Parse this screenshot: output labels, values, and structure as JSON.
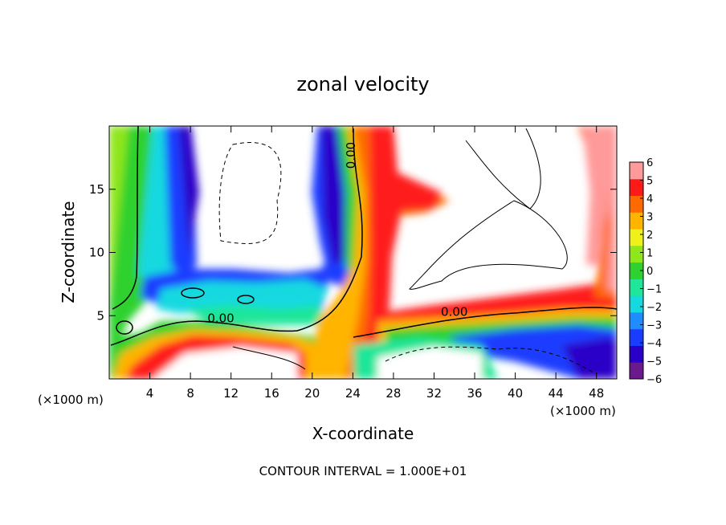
{
  "chart_data": {
    "type": "heatmap",
    "title": "zonal velocity",
    "xlabel": "X-coordinate",
    "ylabel": "Z-coordinate",
    "x_unit": "(×1000 m)",
    "y_unit": "(×1000 m)",
    "footer": "CONTOUR INTERVAL = 1.000E+01",
    "xlim": [
      0,
      50
    ],
    "ylim": [
      0,
      20
    ],
    "x_ticks": [
      4,
      8,
      12,
      16,
      20,
      24,
      28,
      32,
      36,
      40,
      44,
      48
    ],
    "y_ticks": [
      5,
      10,
      15
    ],
    "colorbar": {
      "range": [
        -6,
        6
      ],
      "ticks": [
        6,
        5,
        4,
        3,
        2,
        1,
        0,
        -1,
        -2,
        -3,
        -4,
        -5,
        -6
      ],
      "colors": [
        "#6b1a8e",
        "#2a00c8",
        "#1a3cff",
        "#1f8cff",
        "#16d9e0",
        "#1fe69a",
        "#2ed12e",
        "#8fe61a",
        "#f0f01a",
        "#ffb400",
        "#ff6a00",
        "#ff1a1a",
        "#ff9a9a"
      ]
    },
    "contour_labels": [
      {
        "text": "0.00",
        "x": 11,
        "y": 4.8
      },
      {
        "text": "0.00",
        "x": 34,
        "y": 5.3
      },
      {
        "text": "0.00",
        "x": 24.2,
        "y": 18
      }
    ]
  }
}
